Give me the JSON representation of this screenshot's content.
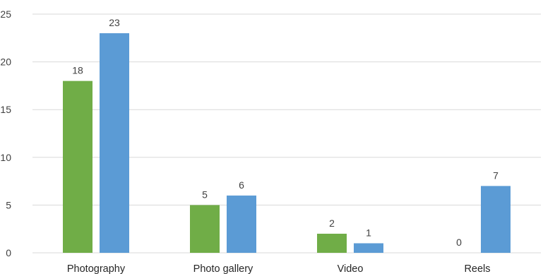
{
  "chart_data": {
    "type": "bar",
    "title": "",
    "xlabel": "",
    "ylabel": "",
    "categories": [
      "Photography",
      "Photo gallery",
      "Video",
      "Reels"
    ],
    "series": [
      {
        "values": [
          18,
          5,
          2,
          0
        ],
        "color": "#70ad47"
      },
      {
        "values": [
          23,
          6,
          1,
          7
        ],
        "color": "#5b9bd5"
      }
    ],
    "ylim": [
      0,
      25
    ],
    "yticks": [
      0,
      5,
      10,
      15,
      20,
      25
    ],
    "ytick_labels": [
      "0",
      "5",
      "10",
      "15",
      "20",
      "25"
    ],
    "grid": true,
    "legend": "none",
    "data_labels": true
  }
}
